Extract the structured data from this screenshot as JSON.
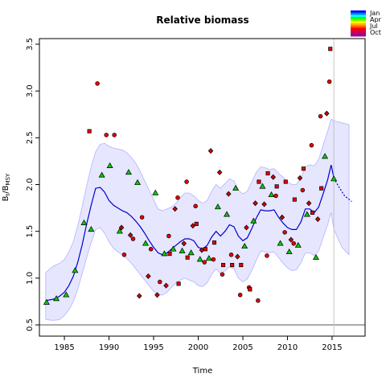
{
  "chart_data": {
    "type": "scatter",
    "title": "Relative biomass",
    "xlabel": "Time",
    "ylabel_main": "B",
    "ylabel_sub1": "t",
    "ylabel_mid": "/B",
    "ylabel_sub2": "MSY",
    "xlim": [
      1982.2,
      2018.7
    ],
    "ylim": [
      0.38,
      3.56
    ],
    "xticks": [
      1985,
      1990,
      1995,
      2000,
      2005,
      2010,
      2015
    ],
    "yticks": [
      0.5,
      1.0,
      1.5,
      2.0,
      2.5,
      3.0,
      3.5
    ],
    "xtick_labels": [
      "1985",
      "1990",
      "1995",
      "2000",
      "2005",
      "2010",
      "2015"
    ],
    "ytick_labels": [
      "0.5",
      "1.0",
      "1.5",
      "2.0",
      "2.5",
      "3.0",
      "3.5"
    ],
    "reference_line_y": 0.5,
    "vertical_line_x": 2015.2,
    "colors": {
      "band": "#e6e6ff",
      "band_edge": "#b3b3ff",
      "median_line": "#0000cd",
      "triangles": "#00cc00",
      "circles_squares": "#e60000",
      "diamonds": "#cc0000",
      "vline": "#c8c8c8"
    },
    "legend": {
      "position": "top-right",
      "labels": [
        "Jan",
        "Apr",
        "Jul",
        "Oct"
      ],
      "colors": [
        "#0000ff",
        "#0080ff",
        "#00ffff",
        "#00ff00",
        "#80ff00",
        "#ffff00",
        "#ffb000",
        "#ff6000",
        "#ff0000",
        "#e00030",
        "#c00060",
        "#a00090"
      ]
    },
    "series": [
      {
        "marker": "line",
        "x": [
          1982.9,
          1983.5,
          1984.0,
          1984.5,
          1985.0,
          1985.5,
          1986.0,
          1986.5,
          1987.0,
          1987.5,
          1988.0,
          1988.5,
          1989.0,
          1989.5,
          1990.0,
          1990.5,
          1991.0,
          1991.5,
          1992.0,
          1992.5,
          1993.0,
          1993.5,
          1994.0,
          1994.5,
          1995.0,
          1995.5,
          1996.0,
          1996.5,
          1997.0,
          1997.5,
          1998.0,
          1998.5,
          1999.0,
          1999.5,
          2000.0,
          2000.5,
          2001.0,
          2001.5,
          2002.0,
          2002.5,
          2003.0,
          2003.5,
          2004.0,
          2004.5,
          2005.0,
          2005.5,
          2006.0,
          2006.5,
          2007.0,
          2007.5,
          2008.0,
          2008.5,
          2009.0,
          2009.5,
          2010.0,
          2010.5,
          2011.0,
          2011.5,
          2012.0,
          2012.5,
          2013.0,
          2013.5,
          2014.0,
          2014.5,
          2014.9,
          2015.2
        ],
        "y": [
          0.76,
          0.77,
          0.78,
          0.81,
          0.85,
          0.92,
          1.02,
          1.17,
          1.36,
          1.58,
          1.78,
          1.96,
          1.97,
          1.92,
          1.83,
          1.78,
          1.75,
          1.72,
          1.7,
          1.66,
          1.61,
          1.55,
          1.48,
          1.4,
          1.33,
          1.27,
          1.25,
          1.27,
          1.31,
          1.35,
          1.39,
          1.42,
          1.42,
          1.4,
          1.33,
          1.31,
          1.35,
          1.44,
          1.5,
          1.45,
          1.5,
          1.57,
          1.55,
          1.45,
          1.4,
          1.43,
          1.53,
          1.64,
          1.73,
          1.72,
          1.72,
          1.73,
          1.65,
          1.59,
          1.54,
          1.52,
          1.52,
          1.6,
          1.74,
          1.74,
          1.7,
          1.76,
          1.9,
          2.05,
          2.21,
          2.07
        ],
        "projection_x": [
          2015.2,
          2015.6,
          2016.0,
          2016.4,
          2016.8,
          2017.2
        ],
        "projection_y": [
          2.07,
          2.0,
          1.94,
          1.88,
          1.85,
          1.82
        ],
        "upper": [
          1.06,
          1.11,
          1.14,
          1.16,
          1.2,
          1.28,
          1.39,
          1.56,
          1.77,
          1.99,
          2.19,
          2.35,
          2.43,
          2.44,
          2.41,
          2.39,
          2.38,
          2.37,
          2.34,
          2.29,
          2.23,
          2.14,
          2.04,
          1.94,
          1.84,
          1.74,
          1.72,
          1.74,
          1.76,
          1.8,
          1.86,
          1.91,
          1.91,
          1.88,
          1.83,
          1.8,
          1.83,
          1.93,
          2.0,
          1.96,
          2.01,
          2.06,
          2.04,
          1.94,
          1.9,
          1.93,
          2.03,
          2.13,
          2.19,
          2.18,
          2.16,
          2.17,
          2.12,
          2.08,
          2.03,
          2.0,
          2.0,
          2.07,
          2.19,
          2.21,
          2.2,
          2.27,
          2.42,
          2.57,
          2.7,
          2.68
        ],
        "lower": [
          0.56,
          0.55,
          0.55,
          0.56,
          0.6,
          0.66,
          0.75,
          0.88,
          1.05,
          1.22,
          1.38,
          1.52,
          1.54,
          1.48,
          1.39,
          1.32,
          1.28,
          1.25,
          1.21,
          1.16,
          1.1,
          1.04,
          0.98,
          0.92,
          0.86,
          0.82,
          0.82,
          0.85,
          0.9,
          0.95,
          0.98,
          1.0,
          0.98,
          0.96,
          0.92,
          0.91,
          0.95,
          1.04,
          1.1,
          1.05,
          1.08,
          1.12,
          1.1,
          1.0,
          0.96,
          0.99,
          1.08,
          1.19,
          1.29,
          1.28,
          1.27,
          1.28,
          1.22,
          1.16,
          1.11,
          1.08,
          1.09,
          1.16,
          1.27,
          1.27,
          1.24,
          1.29,
          1.43,
          1.57,
          1.7,
          1.52
        ],
        "projection_upper": [
          2.68,
          2.66,
          2.64
        ],
        "projection_lower": [
          1.52,
          1.33,
          1.25
        ],
        "projection_band_x": [
          2015.2,
          2016.1,
          2016.9
        ]
      },
      {
        "marker": "triangle",
        "x": [
          1983.0,
          1984.1,
          1985.2,
          1986.2,
          1987.2,
          1988.0,
          1989.2,
          1990.1,
          1991.2,
          1992.2,
          1993.2,
          1994.1,
          1995.2,
          1996.2,
          1997.2,
          1998.2,
          1999.2,
          2000.2,
          2001.2,
          2002.2,
          2003.2,
          2004.2,
          2005.2,
          2006.2,
          2007.2,
          2008.2,
          2009.2,
          2010.2,
          2011.2,
          2012.2,
          2013.2,
          2014.2,
          2015.2
        ],
        "y": [
          0.74,
          0.78,
          0.82,
          1.08,
          1.59,
          1.52,
          2.1,
          2.2,
          1.5,
          2.13,
          2.02,
          1.37,
          1.91,
          1.26,
          1.31,
          1.29,
          1.27,
          1.2,
          1.21,
          1.76,
          1.68,
          1.96,
          1.34,
          1.61,
          1.98,
          1.89,
          1.37,
          1.28,
          1.35,
          1.68,
          1.22,
          2.3,
          2.06
        ]
      },
      {
        "marker": "circle",
        "x": [
          1988.7,
          1989.7,
          1990.6,
          1991.7,
          1992.7,
          1993.7,
          1994.7,
          1995.7,
          1996.7,
          1997.7,
          1998.7,
          1999.7,
          2000.7,
          2001.7,
          2002.7,
          2003.7,
          2004.7,
          2005.7,
          2006.7,
          2007.7,
          2008.7,
          2009.7,
          2010.7,
          2011.7,
          2012.7,
          2013.7,
          2014.7
        ],
        "y": [
          3.08,
          2.53,
          2.53,
          1.25,
          1.42,
          1.65,
          1.31,
          0.96,
          1.45,
          1.86,
          2.03,
          1.77,
          1.17,
          1.2,
          1.04,
          1.25,
          0.82,
          0.9,
          0.76,
          1.24,
          1.88,
          1.49,
          1.37,
          1.94,
          2.42,
          2.73,
          3.1
        ]
      },
      {
        "marker": "square",
        "x": [
          1987.8,
          1996.8,
          1997.8,
          1998.8,
          1999.8,
          2000.8,
          2001.8,
          2002.8,
          2003.8,
          2004.8,
          2005.8,
          2006.8,
          2007.8,
          2008.8,
          2009.8,
          2010.8,
          2011.8,
          2012.8,
          2013.8,
          2014.8
        ],
        "y": [
          2.57,
          1.26,
          0.94,
          1.22,
          1.58,
          1.31,
          1.38,
          1.14,
          1.14,
          1.14,
          0.88,
          2.03,
          2.12,
          1.98,
          2.03,
          1.84,
          2.17,
          1.7,
          1.96,
          3.45
        ]
      },
      {
        "marker": "diamond",
        "x": [
          1991.4,
          1992.4,
          1993.4,
          1994.4,
          1995.4,
          1996.4,
          1997.4,
          1998.4,
          1999.4,
          2000.4,
          2001.4,
          2002.4,
          2003.4,
          2004.4,
          2005.4,
          2006.4,
          2007.4,
          2008.4,
          2009.4,
          2010.4,
          2011.4,
          2012.4,
          2013.4,
          2014.4
        ],
        "y": [
          1.54,
          1.46,
          0.81,
          1.02,
          0.82,
          0.92,
          1.74,
          1.37,
          1.56,
          1.3,
          2.36,
          2.13,
          1.9,
          1.23,
          1.54,
          1.8,
          1.79,
          2.08,
          1.65,
          1.41,
          2.07,
          1.8,
          1.63,
          2.76
        ]
      }
    ]
  }
}
